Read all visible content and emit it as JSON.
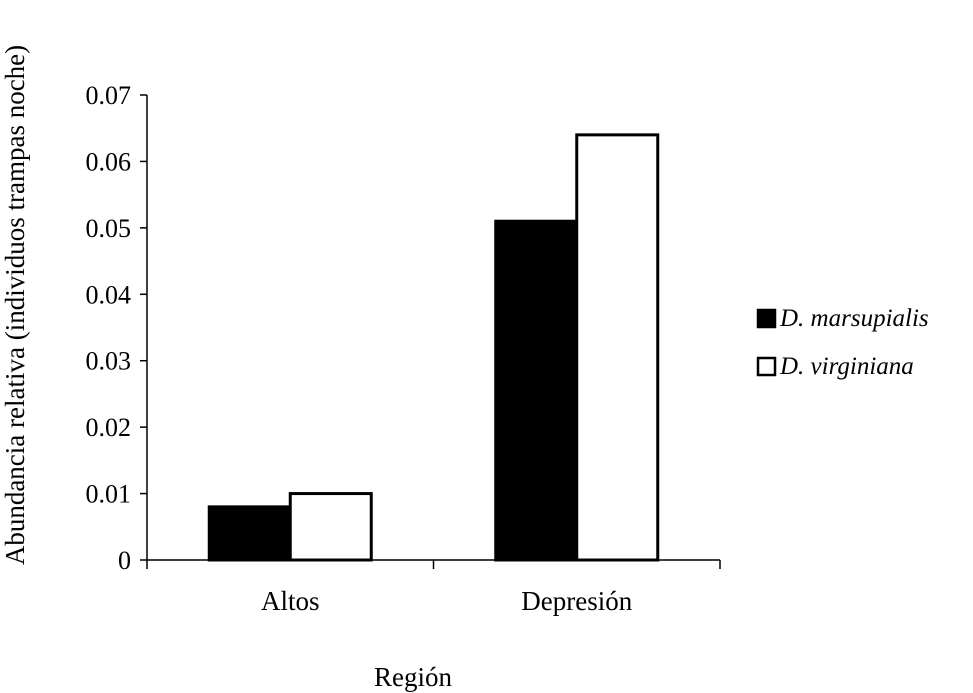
{
  "chart_data": {
    "type": "bar",
    "title": "",
    "xlabel": "Región",
    "ylabel": "Abundancia relativa (individuos trampas noche)",
    "categories": [
      "Altos",
      "Depresión"
    ],
    "series": [
      {
        "name": "D. marsupialis",
        "values": [
          0.008,
          0.051
        ],
        "fill": "#000000"
      },
      {
        "name": "D. virginiana",
        "values": [
          0.01,
          0.064
        ],
        "fill": "#ffffff"
      }
    ],
    "ylim": [
      0,
      0.07
    ],
    "yticks": [
      "0",
      "0.01",
      "0.02",
      "0.03",
      "0.04",
      "0.05",
      "0.06",
      "0.07"
    ],
    "grid": false,
    "legend_position": "right"
  }
}
